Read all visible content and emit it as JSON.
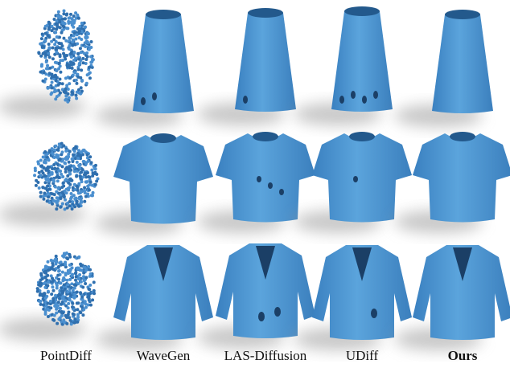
{
  "columns": [
    "PointDiff",
    "WaveGen",
    "LAS-Diffusion",
    "UDiff",
    "Ours"
  ]
}
